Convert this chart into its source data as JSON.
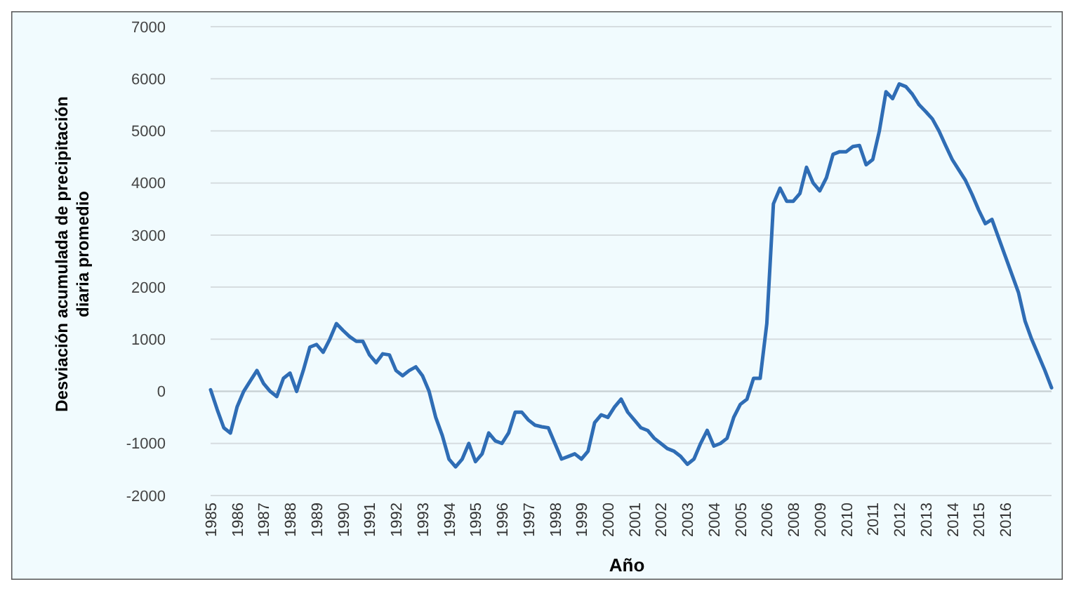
{
  "chart_data": {
    "type": "line",
    "xlabel": "Año",
    "ylabel": "Desviación acumulada de precipitación diaria promedio",
    "categories": [
      "1985",
      null,
      null,
      null,
      "1986",
      null,
      null,
      null,
      "1987",
      null,
      null,
      null,
      "1988",
      null,
      null,
      null,
      "1989",
      null,
      null,
      null,
      "1990",
      null,
      null,
      null,
      "1991",
      null,
      null,
      null,
      "1992",
      null,
      null,
      null,
      "1993",
      null,
      null,
      null,
      "1994",
      null,
      null,
      null,
      "1995",
      null,
      null,
      null,
      "1996",
      null,
      null,
      null,
      "1997",
      null,
      null,
      null,
      "1998",
      null,
      null,
      null,
      "1999",
      null,
      null,
      null,
      "2000",
      null,
      null,
      null,
      "2001",
      null,
      null,
      null,
      "2002",
      null,
      null,
      null,
      "2003",
      null,
      null,
      null,
      "2004",
      null,
      null,
      null,
      "2005",
      null,
      null,
      null,
      "2006",
      null,
      null,
      null,
      "2008",
      null,
      null,
      null,
      "2009",
      null,
      null,
      null,
      "2010",
      null,
      null,
      null,
      "2011",
      null,
      null,
      null,
      "2012",
      null,
      null,
      null,
      "2013",
      null,
      null,
      null,
      "2014",
      null,
      null,
      null,
      "2015",
      null,
      null,
      null,
      "2016",
      null,
      null,
      null,
      null,
      null,
      null,
      null
    ],
    "series": [
      {
        "color": "#2f6db5",
        "values": [
          30,
          -350,
          -700,
          -800,
          -300,
          0,
          200,
          400,
          150,
          0,
          -100,
          250,
          350,
          0,
          400,
          850,
          900,
          750,
          1000,
          1300,
          1170,
          1050,
          960,
          960,
          700,
          550,
          720,
          700,
          400,
          300,
          400,
          470,
          300,
          0,
          -500,
          -850,
          -1300,
          -1450,
          -1300,
          -1000,
          -1350,
          -1200,
          -800,
          -950,
          -1000,
          -800,
          -400,
          -400,
          -550,
          -650,
          -680,
          -700,
          -1000,
          -1300,
          -1250,
          -1200,
          -1300,
          -1150,
          -600,
          -450,
          -500,
          -300,
          -150,
          -400,
          -550,
          -700,
          -750,
          -900,
          -1000,
          -1100,
          -1150,
          -1250,
          -1400,
          -1300,
          -1000,
          -750,
          -1050,
          -1000,
          -900,
          -500,
          -250,
          -150,
          250,
          250,
          1300,
          3600,
          3900,
          3650,
          3650,
          3800,
          4300,
          4000,
          3850,
          4100,
          4550,
          4600,
          4600,
          4700,
          4720,
          4350,
          4450,
          5000,
          5750,
          5620,
          5900,
          5850,
          5700,
          5500,
          5370,
          5230,
          5000,
          4720,
          4450,
          4250,
          4050,
          3780,
          3480,
          3220,
          3300,
          2950,
          2600,
          2250,
          1900,
          1350,
          1000,
          700,
          400,
          70
        ]
      }
    ],
    "ylim": [
      -2000,
      7000
    ],
    "yticks": [
      -2000,
      -1000,
      0,
      1000,
      2000,
      3000,
      4000,
      5000,
      6000,
      7000
    ],
    "grid": "y",
    "marker": "none",
    "line_style": "solid"
  }
}
